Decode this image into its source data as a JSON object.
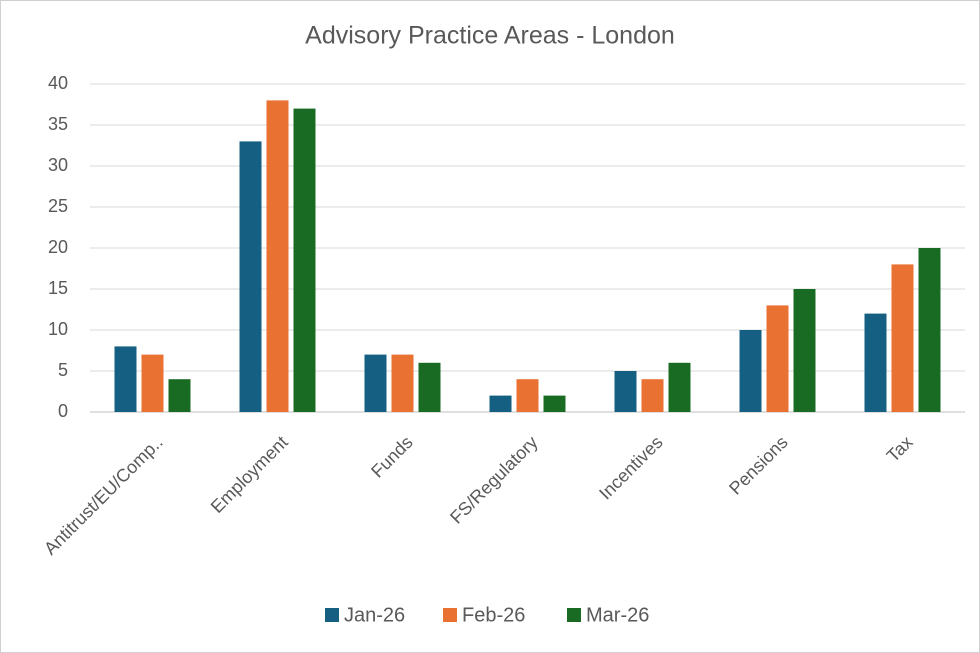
{
  "chart_data": {
    "type": "bar",
    "title": "Advisory Practice Areas - London",
    "categories": [
      "Antitrust/EU/Comp..",
      "Employment",
      "Funds",
      "FS/Regulatory",
      "Incentives",
      "Pensions",
      "Tax"
    ],
    "series": [
      {
        "name": "Jan-26",
        "color": "#156082",
        "values": [
          8,
          33,
          7,
          2,
          5,
          10,
          12
        ]
      },
      {
        "name": "Feb-26",
        "color": "#e97132",
        "values": [
          7,
          38,
          7,
          4,
          4,
          13,
          18
        ]
      },
      {
        "name": "Mar-26",
        "color": "#196b24",
        "values": [
          4,
          37,
          6,
          2,
          6,
          15,
          20
        ]
      }
    ],
    "ylim": [
      0,
      40
    ],
    "yticks": [
      0,
      5,
      10,
      15,
      20,
      25,
      30,
      35,
      40
    ],
    "grid": true,
    "legend": "bottom"
  }
}
